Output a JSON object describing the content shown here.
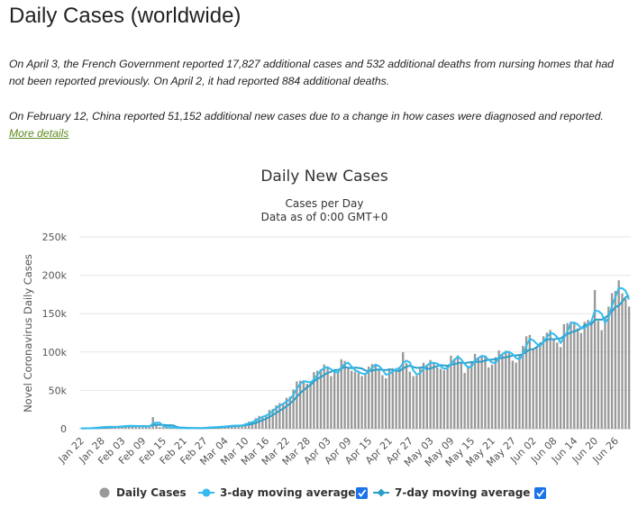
{
  "page": {
    "title": "Daily Cases (worldwide)",
    "note1": "On April 3, the French Government reported 17,827 additional cases and 532 additional deaths from nursing homes that had not been reported previously. On April 2, it had reported 884 additional deaths.",
    "note2_text": "On February 12, China reported 51,152 additional new cases due to a change in how cases were diagnosed and reported. ",
    "note2_link": "More details"
  },
  "colors": {
    "bars": "#999999",
    "avg3": "#33bbee",
    "avg7": "#2b9fc9",
    "checkbox": "#1a73e8",
    "grid": "#e6e6e6"
  },
  "chart_data": {
    "type": "bar",
    "title": "Daily New Cases",
    "subtitle": "Cases per Day",
    "subtitle2": "Data as of 0:00 GMT+0",
    "ylabel": "Novel Coronavirus Daily Cases",
    "ylim": [
      0,
      250000
    ],
    "y_ticks": [
      "0",
      "50k",
      "100k",
      "150k",
      "200k",
      "250k"
    ],
    "x_start": "Jan 22",
    "x_tick_labels": [
      "Jan 22",
      "Jan 28",
      "Feb 03",
      "Feb 09",
      "Feb 15",
      "Feb 21",
      "Feb 27",
      "Mar 04",
      "Mar 10",
      "Mar 16",
      "Mar 22",
      "Mar 28",
      "Apr 03",
      "Apr 09",
      "Apr 15",
      "Apr 21",
      "Apr 27",
      "May 03",
      "May 09",
      "May 15",
      "May 21",
      "May 27",
      "Jun 02",
      "Jun 08",
      "Jun 14",
      "Jun 20",
      "Jun 26"
    ],
    "grid": true,
    "legend_position": "bottom",
    "series": [
      {
        "name": "Daily Cases",
        "values": [
          600,
          300,
          700,
          800,
          1600,
          1800,
          2400,
          2900,
          2100,
          2600,
          2200,
          3000,
          3900,
          3800,
          4000,
          3700,
          3200,
          2800,
          3500,
          2600,
          2800,
          15100,
          6200,
          2200,
          2100,
          2000,
          1900,
          400,
          1800,
          500,
          800,
          700,
          1000,
          600,
          500,
          1000,
          1600,
          1600,
          2200,
          2400,
          2500,
          2700,
          3600,
          3800,
          4200,
          4400,
          3800,
          5100,
          7200,
          9300,
          9400,
          13700,
          16700,
          16300,
          17900,
          24600,
          25900,
          30600,
          33500,
          33000,
          40300,
          41900,
          51200,
          61700,
          62700,
          61900,
          58700,
          60600,
          73800,
          75700,
          77600,
          83800,
          79500,
          68600,
          76300,
          73800,
          90500,
          88400,
          79200,
          75500,
          74400,
          72900,
          68600,
          72700,
          81100,
          84400,
          84700,
          76100,
          69800,
          65800,
          78600,
          78800,
          76000,
          81000,
          99700,
          85600,
          74300,
          68500,
          69500,
          79000,
          86000,
          82200,
          89600,
          85600,
          79800,
          78100,
          76100,
          82600,
          95200,
          91100,
          95500,
          84900,
          72600,
          82100,
          86700,
          97600,
          92400,
          94800,
          95500,
          79900,
          83600,
          93200,
          102000,
          96700,
          101700,
          101300,
          88700,
          86300,
          96300,
          108000,
          120500,
          122300,
          103200,
          106800,
          112400,
          120500,
          125300,
          128700,
          117200,
          112300,
          106400,
          136300,
          137700,
          139700,
          137700,
          130800,
          124600,
          139200,
          141800,
          138900,
          180700,
          140500,
          128400,
          145300,
          159100,
          176600,
          179500,
          193400,
          176300,
          169400,
          159300
        ]
      },
      {
        "name": "3-day moving average",
        "values": []
      },
      {
        "name": "7-day moving average",
        "values": []
      }
    ]
  },
  "legend": {
    "items": [
      {
        "label": "Daily Cases",
        "checkbox": false
      },
      {
        "label": "3-day moving average",
        "checkbox": true
      },
      {
        "label": "7-day moving average",
        "checkbox": true
      }
    ]
  }
}
